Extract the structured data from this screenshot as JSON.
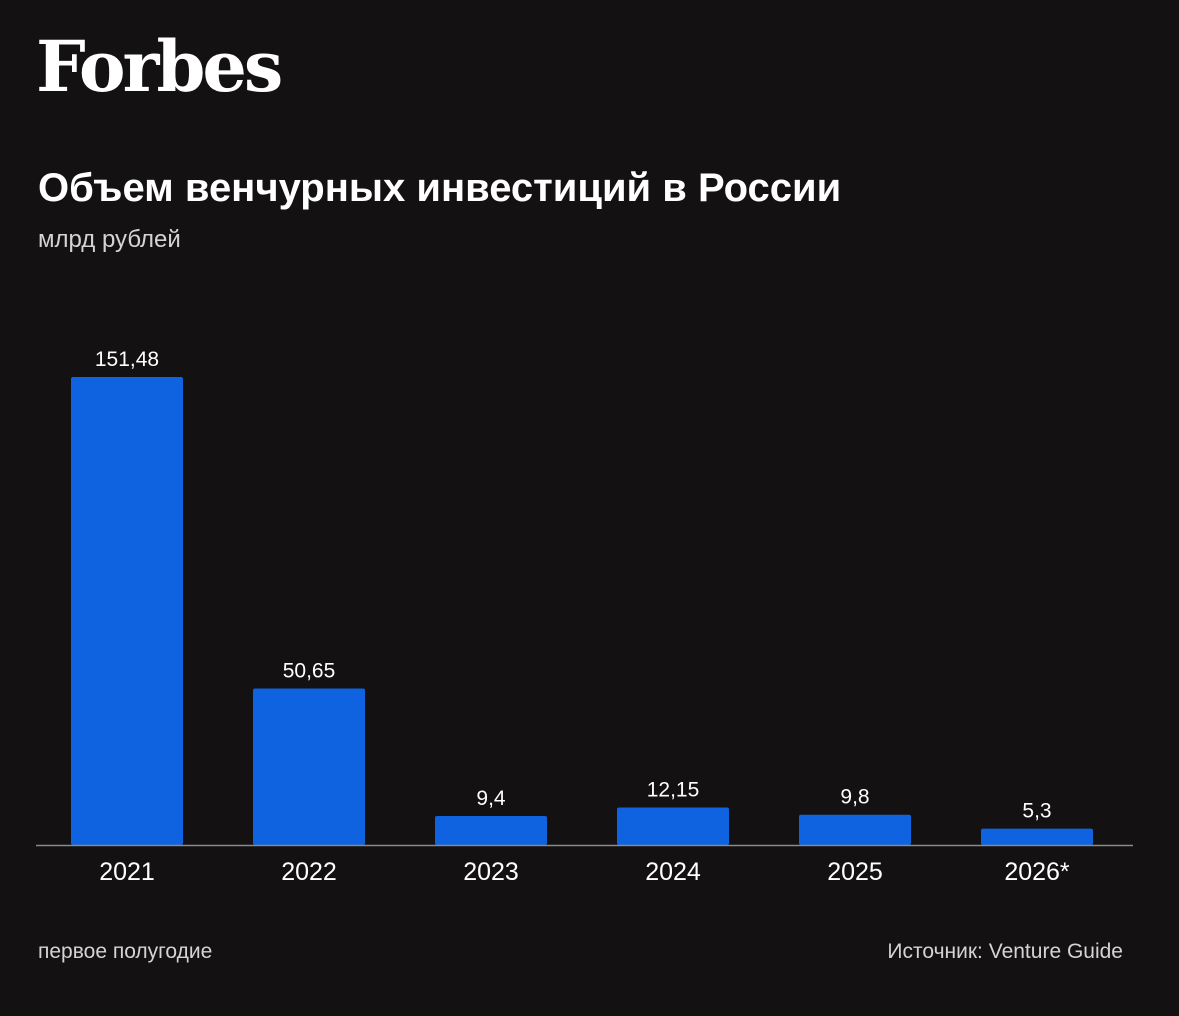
{
  "brand": {
    "logo_text": "Forbes"
  },
  "header": {
    "title": "Объем венчурных инвестиций в России",
    "subtitle": "млрд рублей"
  },
  "footer": {
    "footnote": "первое полугодие",
    "source": "Источник: Venture Guide"
  },
  "colors": {
    "background": "#131111",
    "bar": "#0f63e0",
    "axis": "#8a8a8a",
    "text": "#ffffff"
  },
  "chart_data": {
    "type": "bar",
    "title": "Объем венчурных инвестиций в России",
    "subtitle": "млрд рублей",
    "categories": [
      "2021",
      "2022",
      "2023",
      "2024",
      "2025",
      "2026*"
    ],
    "values": [
      151.48,
      50.65,
      9.4,
      12.15,
      9.8,
      5.3
    ],
    "value_labels": [
      "151,48",
      "50,65",
      "9,4",
      "12,15",
      "9,8",
      "5,3"
    ],
    "xlabel": "",
    "ylabel": "",
    "ylim": [
      0,
      151.48
    ],
    "grid": false,
    "legend": "none"
  }
}
